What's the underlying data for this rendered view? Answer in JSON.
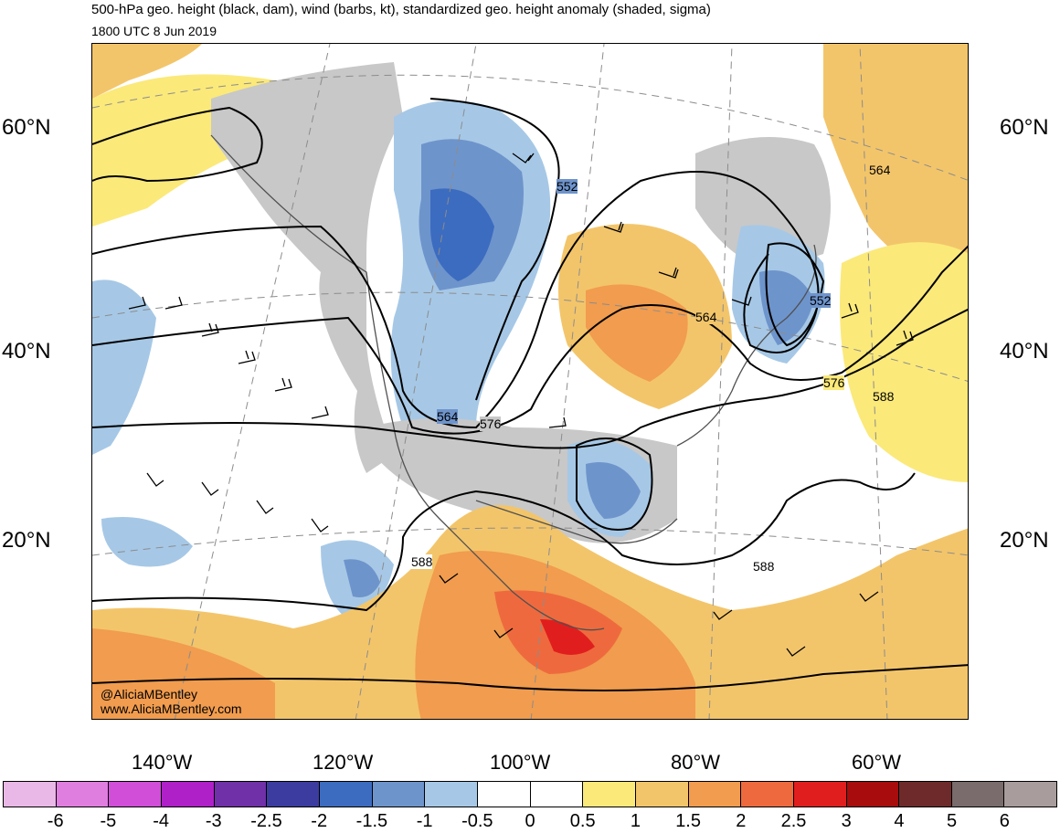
{
  "header": {
    "title": "500-hPa geo. height (black, dam), wind (barbs, kt), standardized geo. height anomaly (shaded, sigma)",
    "valid_time": "1800 UTC 8 Jun 2019"
  },
  "latitude_labels": {
    "left": [
      "60°N",
      "40°N",
      "20°N"
    ],
    "right": [
      "60°N",
      "40°N",
      "20°N"
    ]
  },
  "longitude_labels": [
    "140°W",
    "120°W",
    "100°W",
    "80°W",
    "60°W"
  ],
  "contour_labels": [
    "552",
    "564",
    "576",
    "564",
    "552",
    "564",
    "576",
    "588",
    "588",
    "588"
  ],
  "credits": {
    "handle": "@AliciaMBentley",
    "website": "www.AliciaMBentley.com"
  },
  "colorbar": {
    "colors": [
      "#eab8e6",
      "#e07ee0",
      "#d04ed8",
      "#b020c8",
      "#7030a8",
      "#3c3ca0",
      "#3c6cc0",
      "#6e94cc",
      "#a6c8e6",
      "#ffffff",
      "#ffffff",
      "#fbe97a",
      "#f3c56a",
      "#f19c4e",
      "#ee6a3e",
      "#e11e1e",
      "#a80c0c",
      "#6e2a2a",
      "#7a6c6c",
      "#a89c9c"
    ],
    "ticks": [
      "-6",
      "-5",
      "-4",
      "-3",
      "-2.5",
      "-2",
      "-1.5",
      "-1",
      "-0.5",
      "0",
      "0.5",
      "1",
      "1.5",
      "2",
      "2.5",
      "3",
      "4",
      "5",
      "6"
    ]
  },
  "colors": {
    "land_mask": "#c8c8c8",
    "contour": "#000000",
    "graticule": "#8c8c8c"
  }
}
